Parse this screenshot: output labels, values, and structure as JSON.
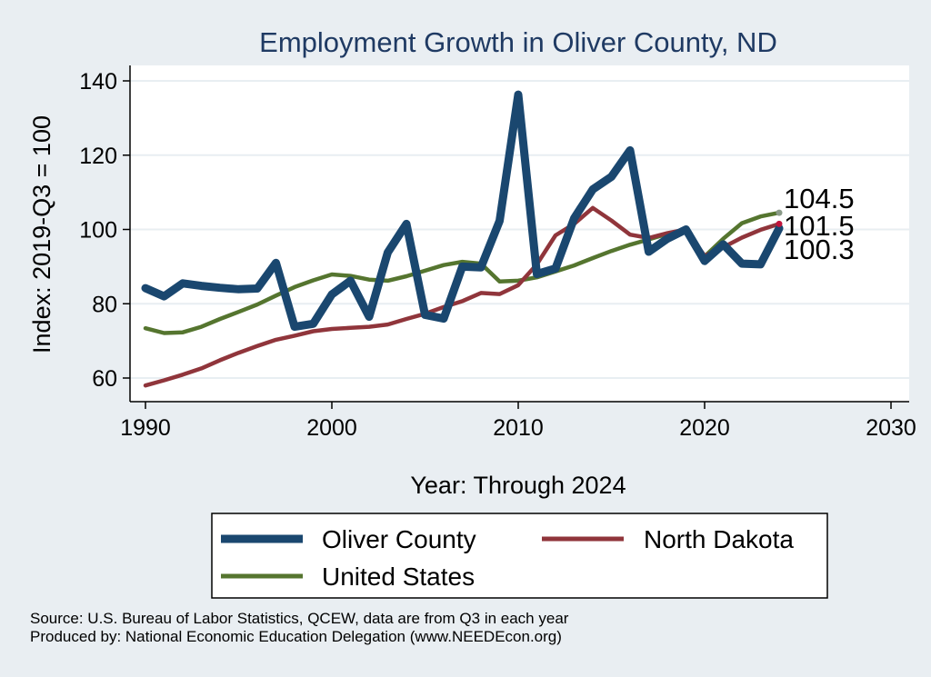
{
  "chart_data": {
    "type": "line",
    "title": "Employment Growth in Oliver County, ND",
    "xlabel": "Year: Through 2024",
    "ylabel": "Index: 2019-Q3 = 100",
    "xlim": [
      1990,
      2030
    ],
    "ylim": [
      55,
      143
    ],
    "x_ticks": [
      1990,
      2000,
      2010,
      2020,
      2030
    ],
    "y_ticks": [
      60,
      80,
      100,
      120,
      140
    ],
    "grid": "horizontal",
    "legend_position": "bottom",
    "x": [
      1990,
      1991,
      1992,
      1993,
      1994,
      1995,
      1996,
      1997,
      1998,
      1999,
      2000,
      2001,
      2002,
      2003,
      2004,
      2005,
      2006,
      2007,
      2008,
      2009,
      2010,
      2011,
      2012,
      2013,
      2014,
      2015,
      2016,
      2017,
      2018,
      2019,
      2020,
      2021,
      2022,
      2023,
      2024
    ],
    "series": [
      {
        "name": "Oliver  County",
        "color": "#1a476f",
        "values": [
          84.2,
          82.0,
          85.5,
          84.8,
          84.3,
          83.9,
          84.1,
          91.0,
          73.8,
          74.6,
          82.5,
          86.2,
          76.5,
          93.8,
          101.5,
          77.0,
          76.0,
          90.0,
          89.8,
          102.3,
          136.3,
          88.0,
          89.5,
          103.0,
          110.8,
          114.2,
          121.3,
          94.0,
          97.5,
          100.0,
          91.5,
          96.0,
          90.8,
          90.6,
          100.3
        ]
      },
      {
        "name": "North Dakota",
        "color": "#90353b",
        "values": [
          58.0,
          59.4,
          60.9,
          62.6,
          64.8,
          66.8,
          68.6,
          70.3,
          71.4,
          72.6,
          73.2,
          73.5,
          73.8,
          74.4,
          75.9,
          77.3,
          79.1,
          80.7,
          82.9,
          82.6,
          85.0,
          90.6,
          98.4,
          101.5,
          105.8,
          102.4,
          98.6,
          97.7,
          99.0,
          100.0,
          92.9,
          95.2,
          97.8,
          99.9,
          101.5
        ]
      },
      {
        "name": "United States",
        "color": "#55752f",
        "values": [
          73.4,
          72.1,
          72.3,
          73.8,
          75.9,
          77.8,
          79.8,
          82.2,
          84.5,
          86.3,
          87.9,
          87.5,
          86.5,
          86.2,
          87.4,
          88.9,
          90.4,
          91.3,
          90.8,
          86.0,
          86.2,
          87.1,
          88.7,
          90.3,
          92.3,
          94.2,
          95.9,
          97.3,
          98.8,
          100.0,
          92.7,
          97.5,
          101.7,
          103.5,
          104.5
        ]
      }
    ],
    "end_labels": [
      "104.5",
      "101.5",
      "100.3"
    ]
  },
  "source": {
    "line1": "Source: U.S. Bureau of Labor Statistics, QCEW, data are from Q3 in each year",
    "line2": "Produced by: National Economic Education Delegation (www.NEEDEcon.org)"
  }
}
